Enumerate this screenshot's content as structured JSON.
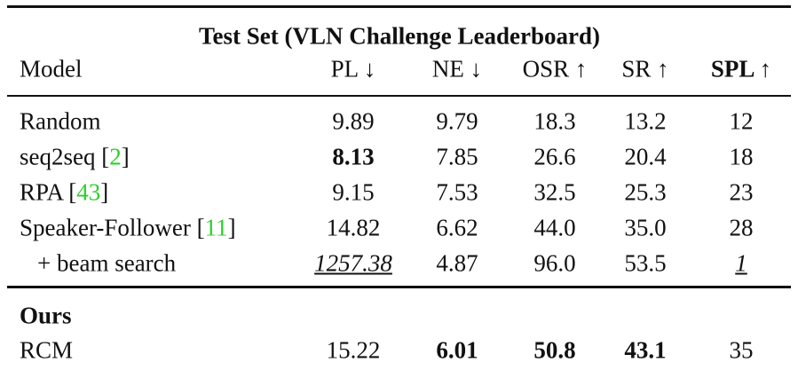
{
  "table": {
    "title": "Test Set (VLN Challenge Leaderboard)",
    "header": [
      "Model",
      "PL ↓",
      "NE ↓",
      "OSR ↑",
      "SR ↑",
      "SPL ↑"
    ],
    "header_bold": [
      5
    ],
    "rows": [
      {
        "model": [
          "Random"
        ],
        "cells": [
          "9.89",
          "9.79",
          "18.3",
          "13.2",
          "12"
        ],
        "bold": [],
        "underline_italic": []
      },
      {
        "model": [
          "seq2seq [",
          "2",
          "]"
        ],
        "cells": [
          "8.13",
          "7.85",
          "26.6",
          "20.4",
          "18"
        ],
        "bold": [
          0
        ],
        "underline_italic": []
      },
      {
        "model": [
          "RPA [",
          "43",
          "]"
        ],
        "cells": [
          "9.15",
          "7.53",
          "32.5",
          "25.3",
          "23"
        ],
        "bold": [],
        "underline_italic": []
      },
      {
        "model": [
          "Speaker-Follower [",
          "11",
          "]"
        ],
        "cells": [
          "14.82",
          "6.62",
          "44.0",
          "35.0",
          "28"
        ],
        "bold": [],
        "underline_italic": []
      },
      {
        "model": [
          "+ beam search"
        ],
        "indent": true,
        "cells": [
          "1257.38",
          "4.87",
          "96.0",
          "53.5",
          "1"
        ],
        "bold": [],
        "underline_italic": [
          0,
          4
        ]
      }
    ],
    "section": "Ours",
    "ours_rows": [
      {
        "model": [
          "RCM"
        ],
        "cells": [
          "15.22",
          "6.01",
          "50.8",
          "43.1",
          "35"
        ],
        "bold": [
          1,
          2,
          3
        ],
        "underline_italic": []
      }
    ],
    "citation_color": "#2bd02b"
  }
}
